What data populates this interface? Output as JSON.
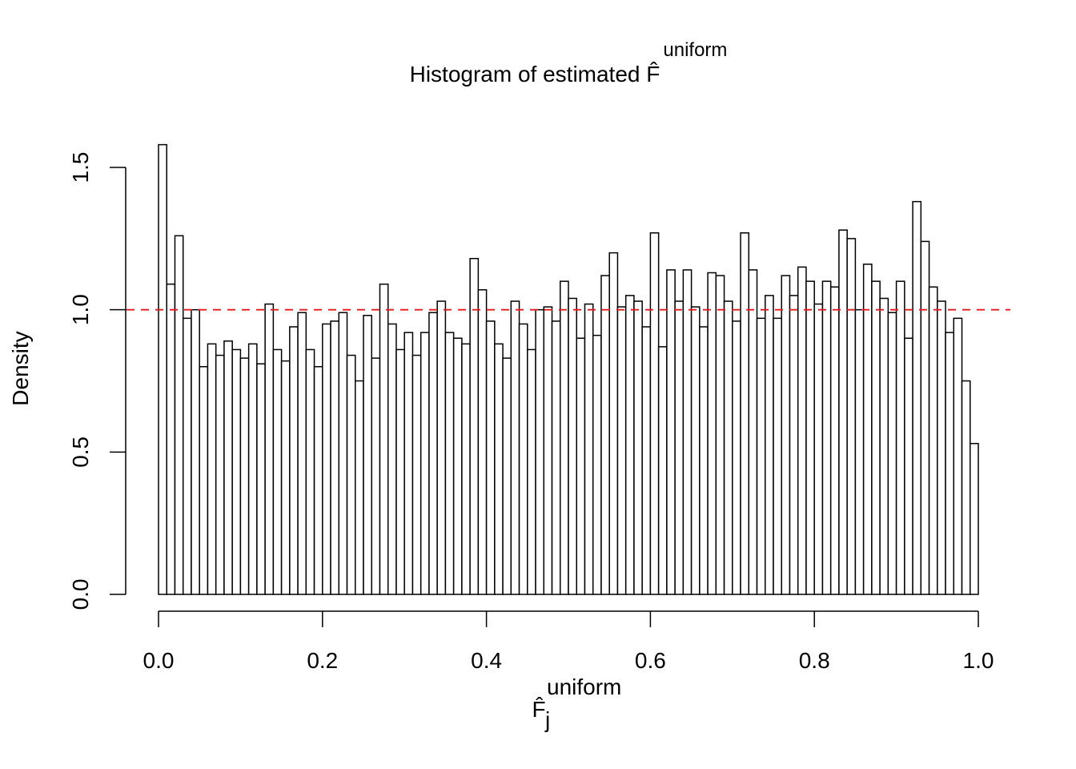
{
  "chart_data": {
    "type": "histogram",
    "title": "Histogram of estimated F̂",
    "title_superscript": "uniform",
    "xlabel": "F̂",
    "xlabel_subscript": "j",
    "xlabel_superscript": "uniform",
    "ylabel": "Density",
    "bins": [
      0,
      0.01,
      0.02,
      0.03,
      0.04,
      0.05,
      0.06,
      0.07,
      0.08,
      0.09,
      0.1,
      0.11,
      0.12,
      0.13,
      0.14,
      0.15,
      0.16,
      0.17,
      0.18,
      0.19,
      0.2,
      0.21,
      0.22,
      0.23,
      0.24,
      0.25,
      0.26,
      0.27,
      0.28,
      0.29,
      0.3,
      0.31,
      0.32,
      0.33,
      0.34,
      0.35,
      0.36,
      0.37,
      0.38,
      0.39,
      0.4,
      0.41,
      0.42,
      0.43,
      0.44,
      0.45,
      0.46,
      0.47,
      0.48,
      0.49,
      0.5,
      0.51,
      0.52,
      0.53,
      0.54,
      0.55,
      0.56,
      0.57,
      0.58,
      0.59,
      0.6,
      0.61,
      0.62,
      0.63,
      0.64,
      0.65,
      0.66,
      0.67,
      0.68,
      0.69,
      0.7,
      0.71,
      0.72,
      0.73,
      0.74,
      0.75,
      0.76,
      0.77,
      0.78,
      0.79,
      0.8,
      0.81,
      0.82,
      0.83,
      0.84,
      0.85,
      0.86,
      0.87,
      0.88,
      0.89,
      0.9,
      0.91,
      0.92,
      0.93,
      0.94,
      0.95,
      0.96,
      0.97,
      0.98,
      0.99,
      1
    ],
    "values": [
      1.58,
      1.09,
      1.26,
      0.97,
      1.0,
      0.8,
      0.88,
      0.84,
      0.89,
      0.86,
      0.83,
      0.88,
      0.81,
      1.02,
      0.86,
      0.82,
      0.94,
      0.99,
      0.86,
      0.8,
      0.95,
      0.96,
      0.99,
      0.84,
      0.75,
      0.98,
      0.83,
      1.09,
      0.95,
      0.86,
      0.92,
      0.84,
      0.92,
      0.99,
      1.03,
      0.92,
      0.9,
      0.88,
      1.18,
      1.07,
      0.96,
      0.88,
      0.83,
      1.03,
      0.95,
      0.86,
      1.0,
      1.01,
      0.96,
      1.1,
      1.04,
      0.9,
      1.02,
      0.91,
      1.12,
      1.2,
      1.01,
      1.05,
      1.03,
      0.94,
      1.27,
      0.87,
      1.14,
      1.03,
      1.14,
      1.01,
      0.94,
      1.13,
      1.12,
      1.03,
      0.96,
      1.27,
      1.14,
      0.97,
      1.05,
      0.97,
      1.12,
      1.05,
      1.15,
      1.1,
      1.02,
      1.1,
      1.08,
      1.28,
      1.25,
      1.0,
      1.16,
      1.1,
      1.04,
      0.99,
      1.1,
      0.9,
      1.38,
      1.24,
      1.08,
      1.03,
      0.92,
      0.97,
      0.75,
      0.53
    ],
    "color": "#ffffff",
    "edgecolor": "#000000",
    "xlim": [
      0,
      1
    ],
    "xticks": [
      {
        "value": 0,
        "label": "0.0"
      },
      0.2,
      0.4,
      0.6,
      0.8,
      {
        "value": 1,
        "label": "1.0"
      }
    ],
    "ylim": [
      0,
      1.58
    ],
    "yticks": [
      {
        "value": 0,
        "label": "0.0"
      },
      0.5,
      {
        "value": 1,
        "label": "1.0"
      },
      1.5
    ],
    "hline": {
      "value": 1,
      "color": "#e41a1c",
      "style": "dashed"
    }
  }
}
